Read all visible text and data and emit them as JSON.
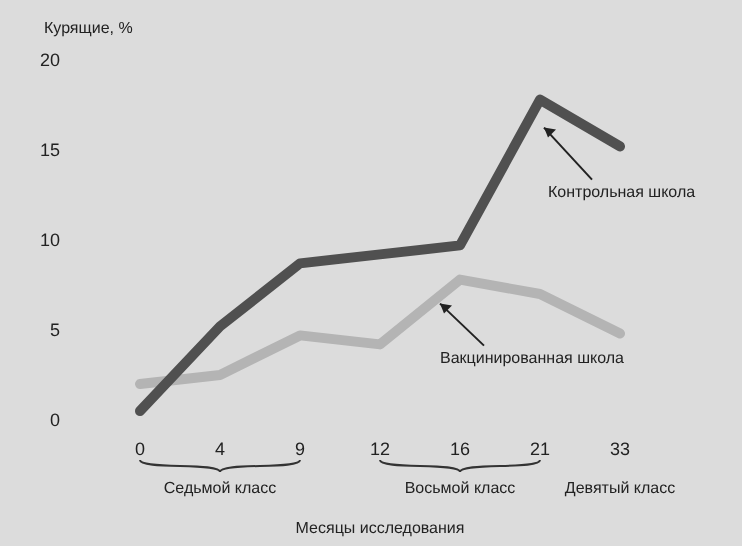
{
  "chart_data": {
    "type": "line",
    "xlabel": "Месяцы исследования",
    "ylabel": "Курящие, %",
    "categories": [
      "0",
      "4",
      "9",
      "12",
      "16",
      "21",
      "33"
    ],
    "series": [
      {
        "name": "Контрольная школа",
        "color": "#505050",
        "values": [
          0.5,
          5.2,
          8.7,
          9.2,
          9.7,
          17.8,
          15.2
        ]
      },
      {
        "name": "Вакцинированная школа",
        "color": "#b4b4b4",
        "values": [
          2.0,
          2.5,
          4.7,
          4.2,
          7.8,
          7.0,
          4.8
        ]
      }
    ],
    "ylim": [
      0,
      20
    ],
    "yticks": [
      0,
      5,
      10,
      15,
      20
    ],
    "grid": false,
    "legend": false,
    "marker": "none",
    "line_style": "solid",
    "annotations": [
      "Седьмой класс",
      "Восьмой класс",
      "Девятый класс"
    ]
  }
}
